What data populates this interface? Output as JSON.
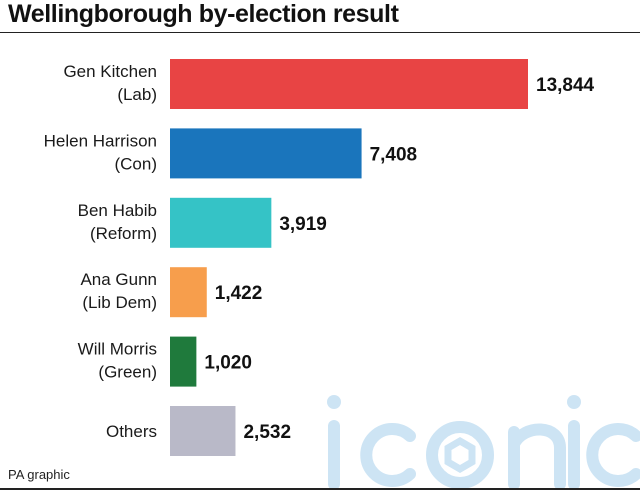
{
  "title": "Wellingborough by-election result",
  "credit": "PA graphic",
  "watermark": "iconic",
  "chart_data": {
    "type": "bar",
    "orientation": "horizontal",
    "categories": [
      [
        "Gen Kitchen",
        "(Lab)"
      ],
      [
        "Helen Harrison",
        "(Con)"
      ],
      [
        "Ben Habib",
        "(Reform)"
      ],
      [
        "Ana Gunn",
        "(Lib Dem)"
      ],
      [
        "Will Morris",
        "(Green)"
      ],
      [
        "Others"
      ]
    ],
    "values": [
      13844,
      7408,
      3919,
      1422,
      1020,
      2532
    ],
    "value_labels": [
      "13,844",
      "7,408",
      "3,919",
      "1,422",
      "1,020",
      "2,532"
    ],
    "colors": [
      "#e84444",
      "#1a75bc",
      "#35c3c6",
      "#f79e4c",
      "#1f7a3c",
      "#b9b9c8"
    ],
    "title": "Wellingborough by-election result",
    "xlabel": "",
    "ylabel": "",
    "grid": false,
    "legend": "none"
  }
}
